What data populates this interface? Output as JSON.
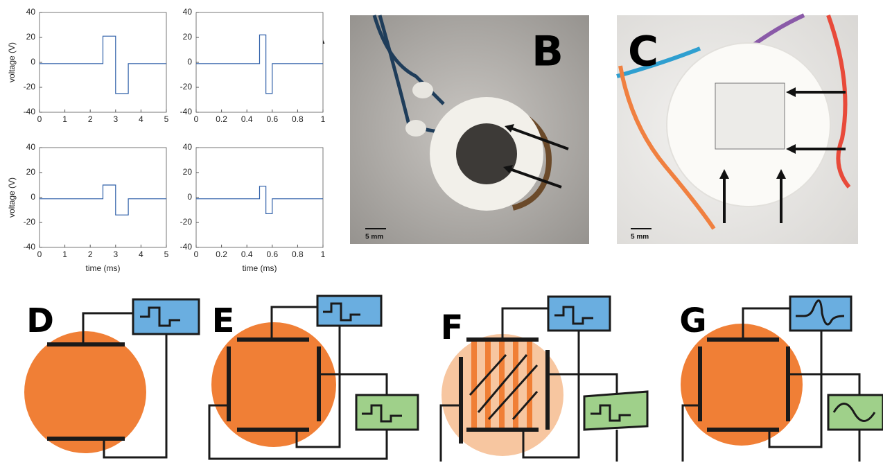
{
  "chart_data": [
    {
      "type": "line",
      "ylabel": "voltage (V)",
      "x": [
        0,
        2.5,
        2.5,
        3,
        3,
        3.5,
        3.5,
        5
      ],
      "series": [
        {
          "color": "#2e5fa8",
          "values": [
            -1,
            -1,
            21,
            21,
            -25,
            -25,
            -1,
            -1
          ]
        }
      ],
      "xlim": [
        0,
        5
      ],
      "ylim": [
        -40,
        40
      ],
      "xticks": [
        0,
        1,
        2,
        3,
        4,
        5
      ],
      "yticks": [
        -40,
        -20,
        0,
        20,
        40
      ]
    },
    {
      "type": "line",
      "x": [
        0,
        0.5,
        0.5,
        0.55,
        0.55,
        0.6,
        0.6,
        1
      ],
      "series": [
        {
          "color": "#2e5fa8",
          "values": [
            -1,
            -1,
            22,
            22,
            -25,
            -25,
            -1,
            -1
          ]
        }
      ],
      "xlim": [
        0,
        1
      ],
      "ylim": [
        -40,
        40
      ],
      "xticks": [
        0,
        0.2,
        0.4,
        0.6,
        0.8,
        1
      ],
      "yticks": [
        -40,
        -20,
        0,
        20,
        40
      ]
    },
    {
      "type": "line",
      "ylabel": "voltage (V)",
      "xlabel": "time (ms)",
      "x": [
        0,
        2.5,
        2.5,
        3,
        3,
        3.5,
        3.5,
        5
      ],
      "series": [
        {
          "color": "#2e5fa8",
          "values": [
            -1,
            -1,
            10,
            10,
            -14,
            -14,
            -1,
            -1
          ]
        }
      ],
      "xlim": [
        0,
        5
      ],
      "ylim": [
        -40,
        40
      ],
      "xticks": [
        0,
        1,
        2,
        3,
        4,
        5
      ],
      "yticks": [
        -40,
        -20,
        0,
        20,
        40
      ]
    },
    {
      "type": "line",
      "xlabel": "time (ms)",
      "x": [
        0,
        0.5,
        0.5,
        0.55,
        0.55,
        0.6,
        0.6,
        1
      ],
      "series": [
        {
          "color": "#2e5fa8",
          "values": [
            -1,
            -1,
            9,
            9,
            -13,
            -13,
            -1,
            -1
          ]
        }
      ],
      "xlim": [
        0,
        1
      ],
      "ylim": [
        -40,
        40
      ],
      "xticks": [
        0,
        0.2,
        0.4,
        0.6,
        0.8,
        1
      ],
      "yticks": [
        -40,
        -20,
        0,
        20,
        40
      ]
    }
  ],
  "panel_labels": [
    "A",
    "B",
    "C",
    "D",
    "E",
    "F",
    "G"
  ],
  "scale_bars": [
    "5 mm",
    "5 mm"
  ]
}
